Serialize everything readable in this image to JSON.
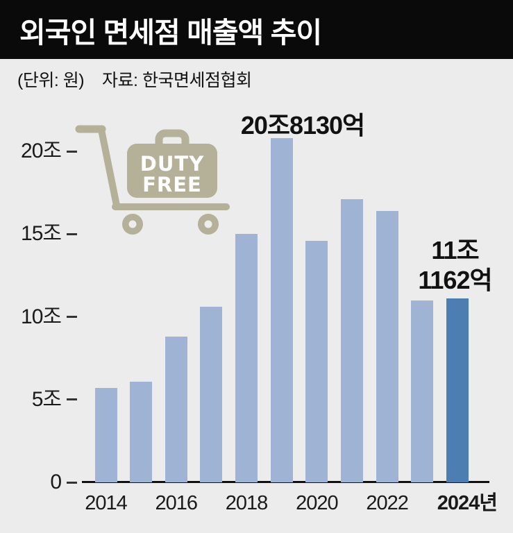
{
  "header": {
    "title": "외국인 면세점 매출액 추이",
    "unit_label": "(단위: 원)",
    "source_label": "자료: 한국면세점협회"
  },
  "icon": {
    "name": "duty-free-shopping-cart",
    "lines": [
      "DUTY",
      "FREE"
    ],
    "color": "#b5b098",
    "text_color": "#ffffff"
  },
  "chart_data": {
    "type": "bar",
    "title": "외국인 면세점 매출액 추이",
    "unit": "조 원",
    "categories": [
      "2014",
      "2015",
      "2016",
      "2017",
      "2018",
      "2019",
      "2020",
      "2021",
      "2022",
      "2023",
      "2024"
    ],
    "values": [
      5.7,
      6.1,
      8.8,
      10.6,
      15.0,
      20.813,
      14.6,
      17.1,
      16.4,
      11.0,
      11.1162
    ],
    "ylim": [
      0,
      22
    ],
    "yticks": [
      {
        "label": "0",
        "value": 0
      },
      {
        "label": "5조",
        "value": 5
      },
      {
        "label": "10조",
        "value": 10
      },
      {
        "label": "15조",
        "value": 15
      },
      {
        "label": "20조",
        "value": 20
      }
    ],
    "x_axis_labels": [
      "2014",
      "2016",
      "2018",
      "2020",
      "2022",
      "2024년"
    ],
    "annotations": [
      {
        "target_year": "2019",
        "text": "20조8130억"
      },
      {
        "target_year": "2024",
        "text": "11조 1162억",
        "lines": [
          "11조",
          "1162억"
        ]
      }
    ],
    "legend": "none",
    "grid": "off",
    "bar_color": "#9fb3d4",
    "highlight_color": "#4d7eb2",
    "highlight_index": 10,
    "background_color": "#ececec",
    "banner_color": "#0a0a0a"
  }
}
